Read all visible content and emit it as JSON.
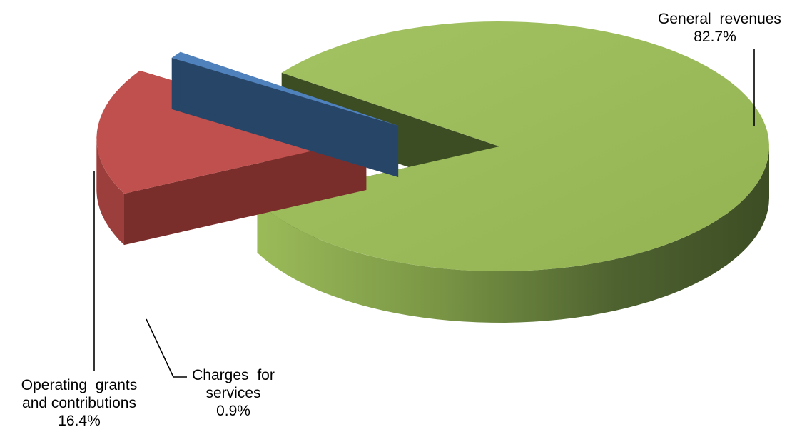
{
  "chart_data": {
    "type": "pie",
    "style": "3d-exploded",
    "categories": [
      "General revenues",
      "Operating grants and contributions",
      "Charges for services"
    ],
    "values": [
      82.7,
      16.4,
      0.9
    ],
    "unit": "%",
    "colors": {
      "General revenues": "#9BBB59",
      "Operating grants and contributions": "#C0504D",
      "Charges for services": "#4F81BD"
    },
    "labels": [
      {
        "category": "General revenues",
        "lines": [
          "General revenues"
        ],
        "value_text": "82.7%"
      },
      {
        "category": "Operating grants and contributions",
        "lines": [
          "Operating grants",
          "and contributions"
        ],
        "value_text": "16.4%"
      },
      {
        "category": "Charges for services",
        "lines": [
          "Charges for",
          "services"
        ],
        "value_text": "0.9%"
      }
    ],
    "legend": "none"
  }
}
